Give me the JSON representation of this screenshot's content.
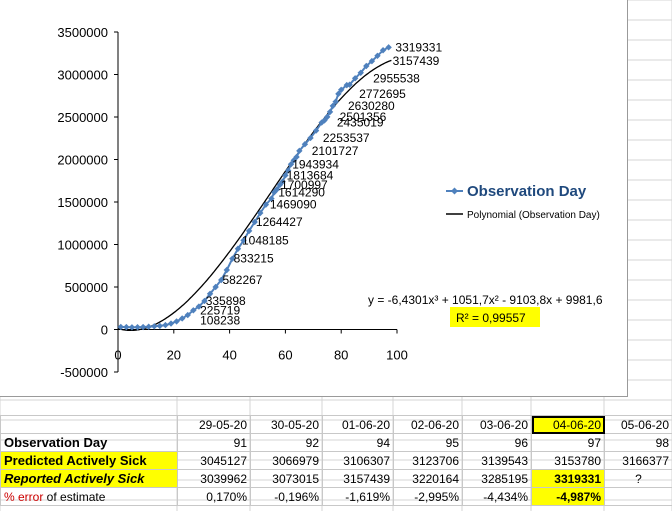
{
  "chart_data": {
    "type": "line",
    "legend": {
      "position": "right",
      "entries": [
        {
          "label": "Observation Day",
          "color": "#4f81bd",
          "marker": "diamond"
        },
        {
          "label": "Polynomial (Observation Day)",
          "color": "#000000",
          "marker": "none"
        }
      ]
    },
    "x_ticks": [
      "0",
      "20",
      "40",
      "60",
      "80",
      "100"
    ],
    "y_ticks": [
      "-500000",
      "0",
      "500000",
      "1000000",
      "1500000",
      "2000000",
      "2500000",
      "3000000",
      "3500000"
    ],
    "xlim": [
      0,
      100
    ],
    "ylim": [
      -500000,
      3500000
    ],
    "equation": "y = -6,4301x³ + 1051,7x² - 9103,8x + 9981,6",
    "r_squared": "R² = 0,99557",
    "series": [
      {
        "name": "Observation Day",
        "color": "#4f81bd",
        "points": [
          [
            1,
            30000
          ],
          [
            3,
            28000
          ],
          [
            5,
            26000
          ],
          [
            7,
            27000
          ],
          [
            9,
            29000
          ],
          [
            11,
            33000
          ],
          [
            13,
            38000
          ],
          [
            15,
            42000
          ],
          [
            17,
            52000
          ],
          [
            19,
            70000
          ],
          [
            21,
            95000
          ],
          [
            23,
            130000
          ],
          [
            25,
            170000
          ],
          [
            27,
            225719
          ],
          [
            29,
            270000
          ],
          [
            31,
            335898
          ],
          [
            33,
            420000
          ],
          [
            35,
            500000
          ],
          [
            37,
            582267
          ],
          [
            39,
            700000
          ],
          [
            41,
            833215
          ],
          [
            43,
            950000
          ],
          [
            45,
            1048185
          ],
          [
            47,
            1160000
          ],
          [
            49,
            1264427
          ],
          [
            51,
            1370000
          ],
          [
            53,
            1469090
          ],
          [
            55,
            1540000
          ],
          [
            56,
            1614290
          ],
          [
            57,
            1650000
          ],
          [
            58,
            1700997
          ],
          [
            59,
            1740000
          ],
          [
            60,
            1813684
          ],
          [
            61,
            1870000
          ],
          [
            62,
            1943934
          ],
          [
            63,
            1990000
          ],
          [
            64,
            2030000
          ],
          [
            65,
            2101727
          ],
          [
            67,
            2180000
          ],
          [
            69,
            2253537
          ],
          [
            71,
            2340000
          ],
          [
            73,
            2435019
          ],
          [
            74,
            2460000
          ],
          [
            75,
            2501356
          ],
          [
            76,
            2560000
          ],
          [
            77,
            2630280
          ],
          [
            78,
            2680000
          ],
          [
            79,
            2772695
          ],
          [
            80,
            2820000
          ],
          [
            82,
            2875000
          ],
          [
            83,
            2880000
          ],
          [
            85,
            2955538
          ],
          [
            87,
            3020000
          ],
          [
            89,
            3100000
          ],
          [
            91,
            3157439
          ],
          [
            93,
            3220164
          ],
          [
            95,
            3285195
          ],
          [
            97,
            3319331
          ]
        ],
        "data_labels": [
          {
            "x": 28,
            "y": 108238,
            "label": "108238"
          },
          {
            "x": 28,
            "y": 225719,
            "label": "225719"
          },
          {
            "x": 30,
            "y": 335898,
            "label": "335898"
          },
          {
            "x": 36,
            "y": 582267,
            "label": "582267"
          },
          {
            "x": 40,
            "y": 833215,
            "label": "833215"
          },
          {
            "x": 43,
            "y": 1048185,
            "label": "1048185"
          },
          {
            "x": 48,
            "y": 1264427,
            "label": "1264427"
          },
          {
            "x": 53,
            "y": 1469090,
            "label": "1469090"
          },
          {
            "x": 56,
            "y": 1614290,
            "label": "1614290"
          },
          {
            "x": 57,
            "y": 1700997,
            "label": "1700997"
          },
          {
            "x": 59,
            "y": 1813684,
            "label": "1813684"
          },
          {
            "x": 61,
            "y": 1943934,
            "label": "1943934"
          },
          {
            "x": 68,
            "y": 2101727,
            "label": "2101727"
          },
          {
            "x": 72,
            "y": 2253537,
            "label": "2253537"
          },
          {
            "x": 77,
            "y": 2435019,
            "label": "2435019"
          },
          {
            "x": 78,
            "y": 2501356,
            "label": "2501356"
          },
          {
            "x": 81,
            "y": 2630280,
            "label": "2630280"
          },
          {
            "x": 85,
            "y": 2772695,
            "label": "2772695"
          },
          {
            "x": 90,
            "y": 2955538,
            "label": "2955538"
          },
          {
            "x": 97,
            "y": 3157439,
            "label": "3157439"
          },
          {
            "x": 98,
            "y": 3319331,
            "label": "3319331"
          }
        ]
      },
      {
        "name": "Polynomial (Observation Day)",
        "color": "#000000",
        "trendline": "polynomial",
        "coefficients": [
          -6.4301,
          1051.7,
          -9103.8,
          9981.6
        ]
      }
    ]
  },
  "table": {
    "dates": [
      "29-05-20",
      "30-05-20",
      "01-06-20",
      "02-06-20",
      "03-06-20",
      "04-06-20",
      "05-06-20"
    ],
    "rows": [
      {
        "label": "Observation Day",
        "values": [
          "91",
          "92",
          "94",
          "95",
          "96",
          "97",
          "98"
        ]
      },
      {
        "label": "Predicted Actively  Sick",
        "values": [
          "3045127",
          "3066979",
          "3106307",
          "3123706",
          "3139543",
          "3153780",
          "3166377"
        ]
      },
      {
        "label": "Reported Actively Sick",
        "values": [
          "3039962",
          "3073015",
          "3157439",
          "3220164",
          "3285195",
          "3319331",
          "?"
        ]
      },
      {
        "label_prefix": "% error",
        "label_suffix": " of estimate",
        "values": [
          "0,170%",
          "-0,196%",
          "-1,619%",
          "-2,995%",
          "-4,434%",
          "-4,987%",
          ""
        ]
      }
    ]
  },
  "colors": {
    "highlight": "#ffff00",
    "series": "#4f81bd",
    "trend": "#000000",
    "error_label": "#cc0000"
  }
}
